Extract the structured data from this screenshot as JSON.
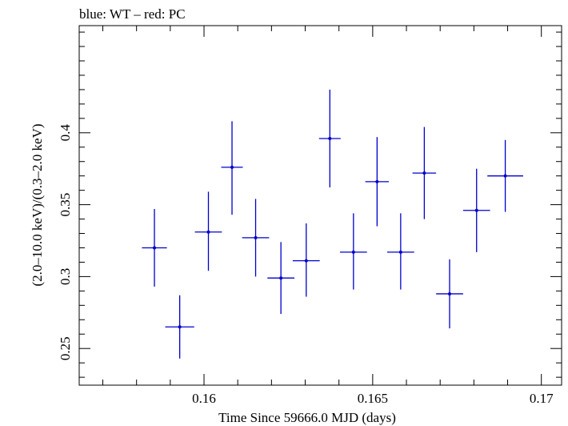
{
  "chart_data": {
    "type": "scatter",
    "title": "blue: WT – red: PC",
    "xlabel": "Time Since 59666.0 MJD (days)",
    "ylabel": "(2.0–10.0 keV)/(0.3–2.0 keV)",
    "xlim": [
      0.1563,
      0.1706
    ],
    "ylim": [
      0.2245,
      0.4745
    ],
    "x_ticks": [
      0.16,
      0.165,
      0.17
    ],
    "x_tick_labels": [
      "0.16",
      "0.165",
      "0.17"
    ],
    "y_ticks": [
      0.25,
      0.3,
      0.35,
      0.4
    ],
    "y_tick_labels": [
      "0.25",
      "0.3",
      "0.35",
      "0.4"
    ],
    "grid": false,
    "legend": "none",
    "series": [
      {
        "color": "#0000cc",
        "points": [
          {
            "x": 0.15853,
            "y": 0.32,
            "xerr": 0.00037,
            "yerr_low": 0.027,
            "yerr_high": 0.027
          },
          {
            "x": 0.15928,
            "y": 0.265,
            "xerr": 0.00043,
            "yerr_low": 0.022,
            "yerr_high": 0.022
          },
          {
            "x": 0.16013,
            "y": 0.331,
            "xerr": 0.0004,
            "yerr_low": 0.027,
            "yerr_high": 0.028
          },
          {
            "x": 0.16083,
            "y": 0.376,
            "xerr": 0.00032,
            "yerr_low": 0.033,
            "yerr_high": 0.032
          },
          {
            "x": 0.16153,
            "y": 0.327,
            "xerr": 0.0004,
            "yerr_low": 0.027,
            "yerr_high": 0.027
          },
          {
            "x": 0.16228,
            "y": 0.299,
            "xerr": 0.0004,
            "yerr_low": 0.025,
            "yerr_high": 0.025
          },
          {
            "x": 0.16303,
            "y": 0.311,
            "xerr": 0.0004,
            "yerr_low": 0.025,
            "yerr_high": 0.026
          },
          {
            "x": 0.16373,
            "y": 0.396,
            "xerr": 0.00032,
            "yerr_low": 0.034,
            "yerr_high": 0.034
          },
          {
            "x": 0.16443,
            "y": 0.317,
            "xerr": 0.0004,
            "yerr_low": 0.026,
            "yerr_high": 0.027
          },
          {
            "x": 0.16513,
            "y": 0.366,
            "xerr": 0.00035,
            "yerr_low": 0.031,
            "yerr_high": 0.031
          },
          {
            "x": 0.16583,
            "y": 0.317,
            "xerr": 0.0004,
            "yerr_low": 0.026,
            "yerr_high": 0.027
          },
          {
            "x": 0.16653,
            "y": 0.372,
            "xerr": 0.00035,
            "yerr_low": 0.032,
            "yerr_high": 0.032
          },
          {
            "x": 0.16728,
            "y": 0.288,
            "xerr": 0.0004,
            "yerr_low": 0.024,
            "yerr_high": 0.024
          },
          {
            "x": 0.16808,
            "y": 0.346,
            "xerr": 0.0004,
            "yerr_low": 0.029,
            "yerr_high": 0.029
          },
          {
            "x": 0.16893,
            "y": 0.37,
            "xerr": 0.00053,
            "yerr_low": 0.025,
            "yerr_high": 0.025
          }
        ]
      }
    ]
  }
}
